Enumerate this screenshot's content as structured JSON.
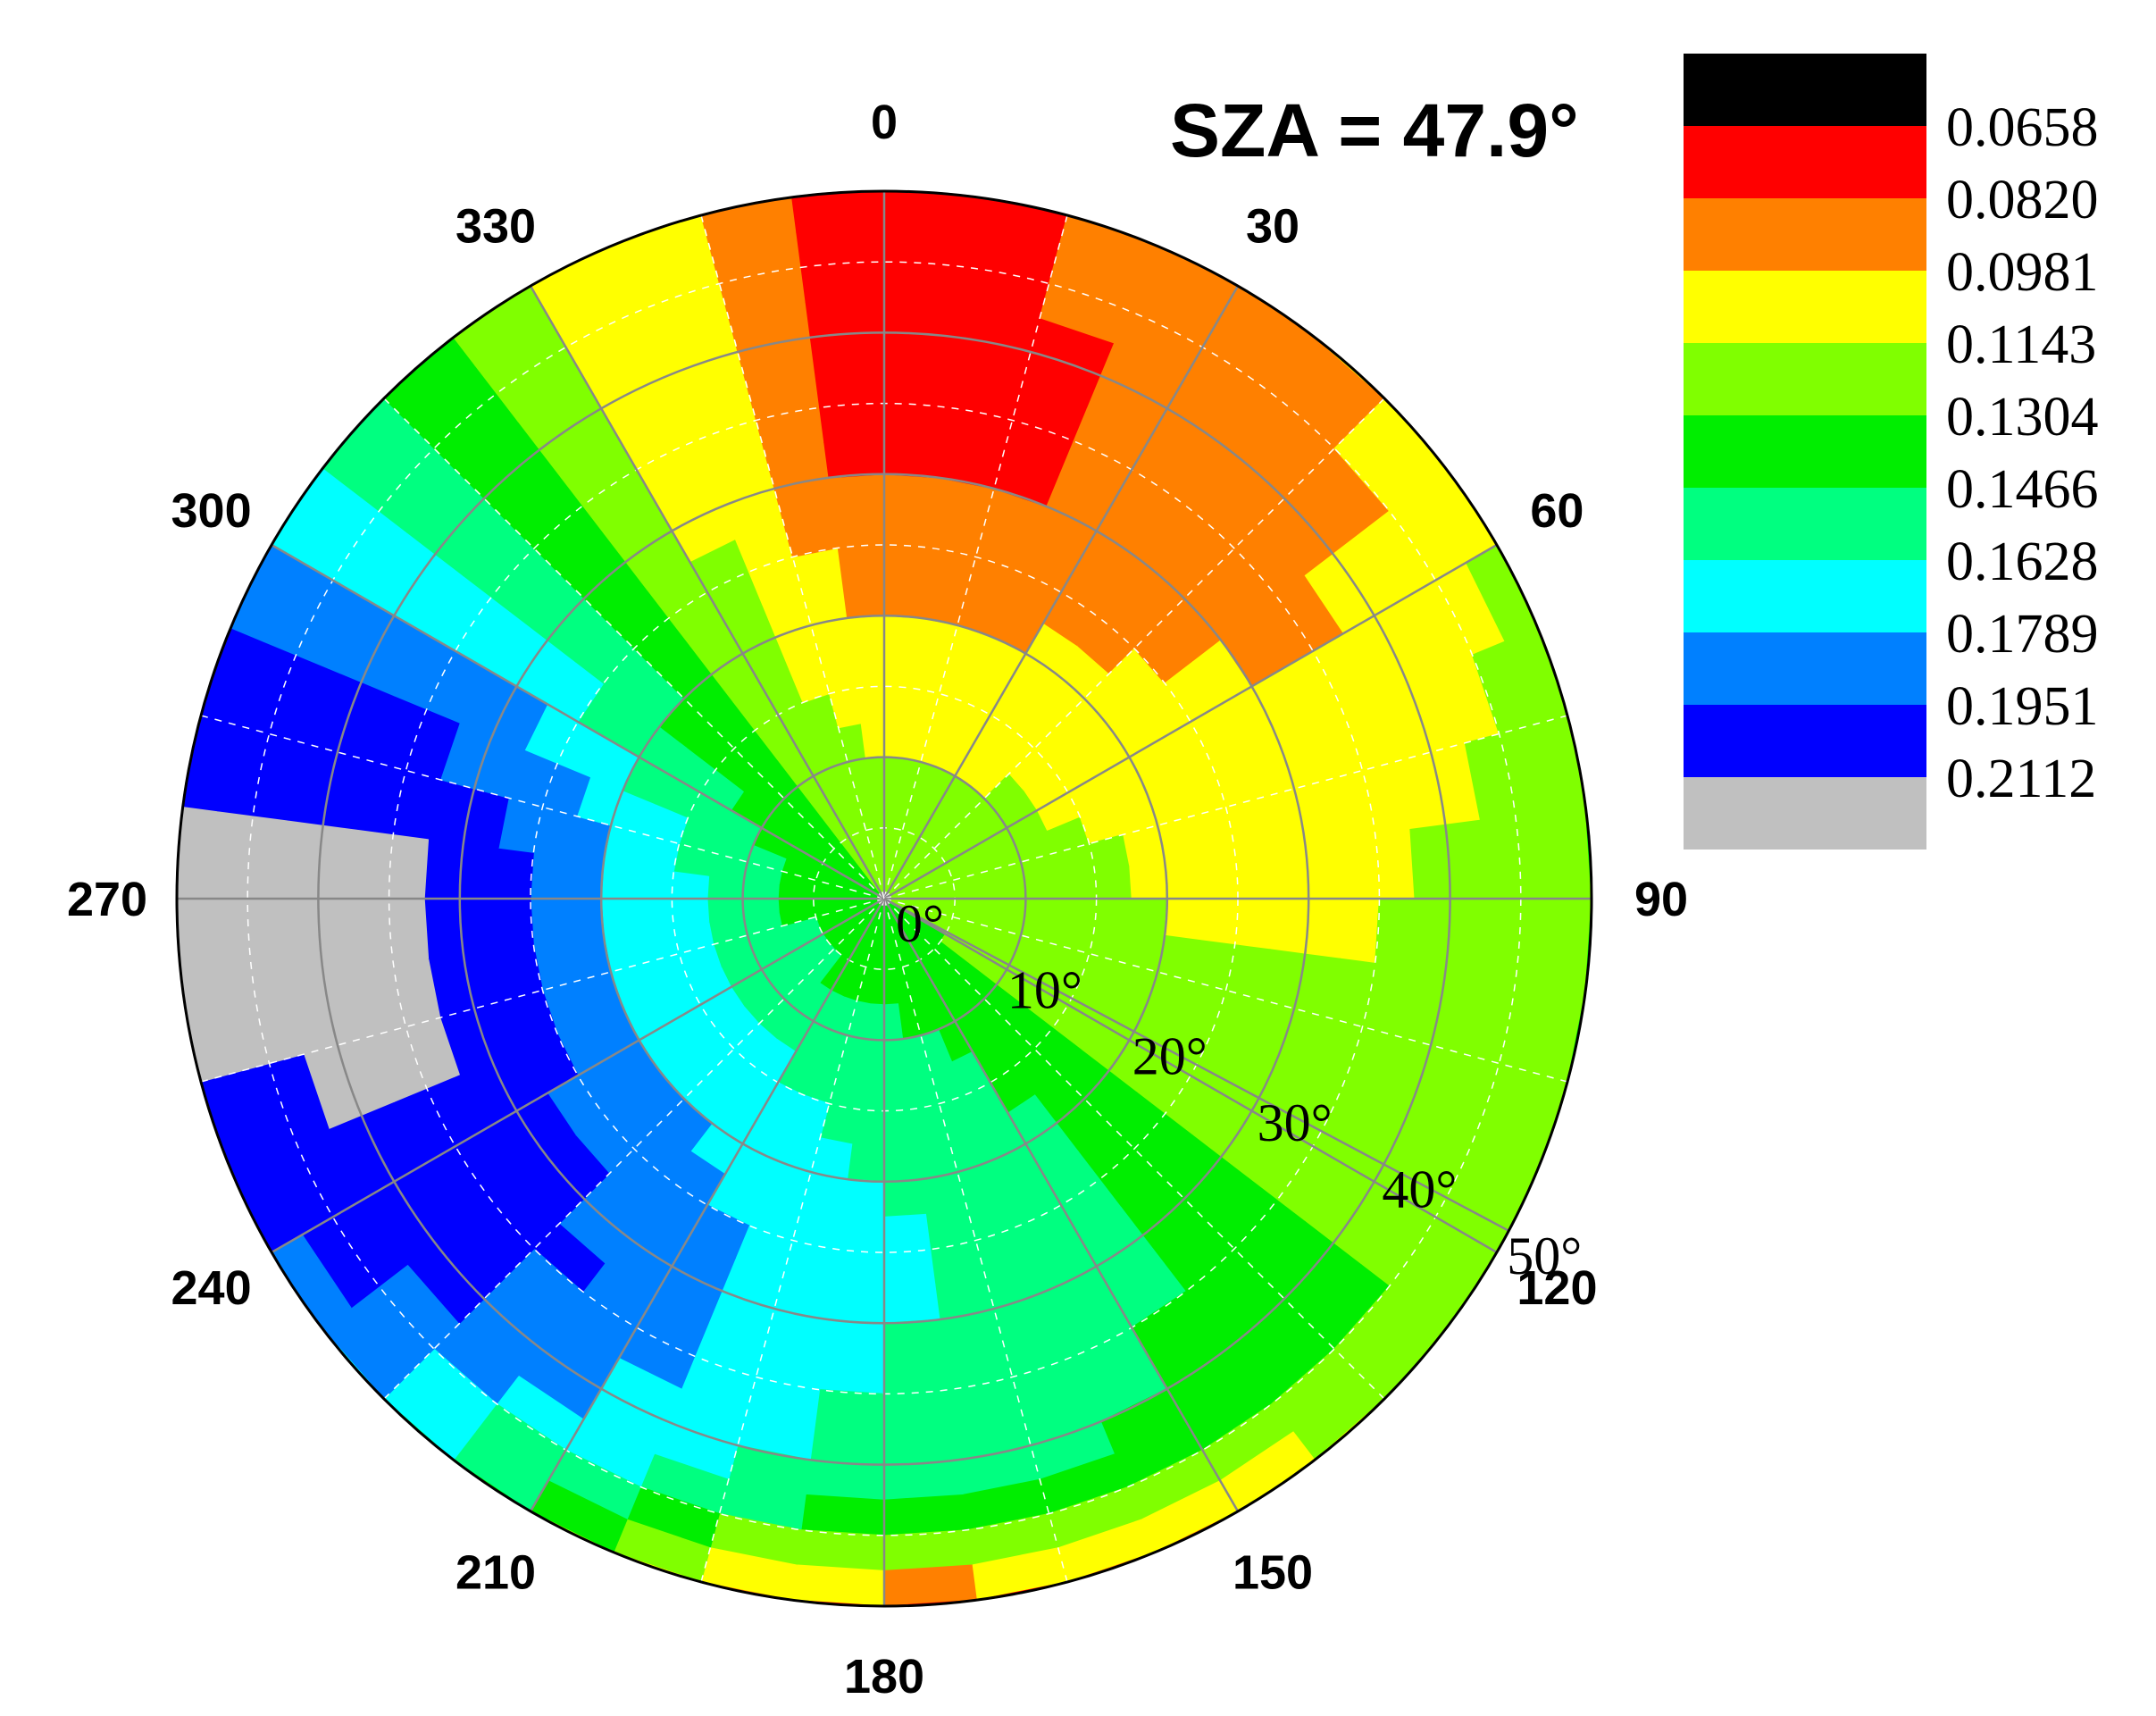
{
  "chart_data": {
    "type": "polar-contour",
    "title": "SZA = 47.9°",
    "azimuth_tick_labels": [
      "0",
      "30",
      "60",
      "90",
      "120",
      "150",
      "180",
      "210",
      "240",
      "270",
      "300",
      "330"
    ],
    "zenith_tick_labels": [
      "0°",
      "10°",
      "20°",
      "30°",
      "40°",
      "50°"
    ],
    "zenith_range": [
      0,
      50
    ],
    "grid": true,
    "legend_position": "right",
    "colorbar": {
      "colors": [
        "#000000",
        "#ff0000",
        "#ff8000",
        "#ffff00",
        "#80ff00",
        "#00ee00",
        "#00ff80",
        "#00ffff",
        "#0080ff",
        "#0000ff",
        "#c0c0c0"
      ],
      "levels": [
        "0.0658",
        "0.0820",
        "0.0981",
        "0.1143",
        "0.1304",
        "0.1466",
        "0.1628",
        "0.1789",
        "0.1951",
        "0.2112"
      ]
    },
    "field_description_note": null,
    "bands": [
      {
        "level_index": 1,
        "value": 0.082,
        "zenith_deg": 49,
        "az_start": 330,
        "az_end": 30
      },
      {
        "level_index": 0,
        "value": 0.0658,
        "zenith_deg": 50,
        "az_start": 345,
        "az_end": 15
      }
    ],
    "profile_by_azimuth": [
      {
        "azimuth": 0,
        "values": [
          0.1304,
          0.0981,
          0.0981,
          0.082,
          0.082,
          0.0981,
          0.082,
          0.0658
        ]
      },
      {
        "azimuth": 90,
        "values": [
          0.1304,
          0.1304,
          0.1304,
          0.1143,
          0.1143,
          0.1304,
          0.1466,
          0.1466
        ]
      },
      {
        "azimuth": 180,
        "values": [
          0.1304,
          0.1466,
          0.1466,
          0.1628,
          0.1628,
          0.1304,
          0.1143,
          0.0981
        ]
      },
      {
        "azimuth": 270,
        "values": [
          0.1304,
          0.1628,
          0.1628,
          0.1789,
          0.2112,
          0.2112,
          0.2112,
          0.2112
        ]
      }
    ]
  }
}
